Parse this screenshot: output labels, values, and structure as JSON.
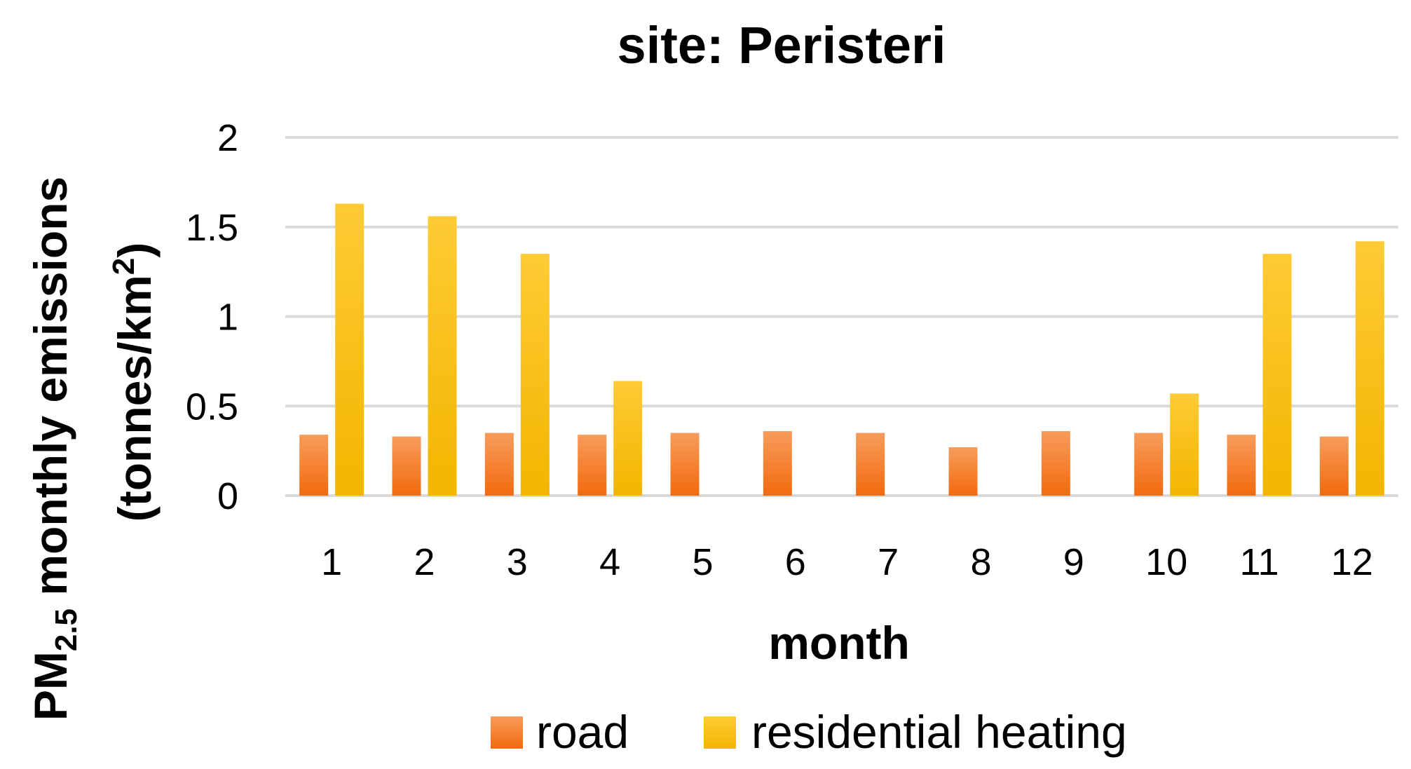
{
  "chart_data": {
    "type": "bar",
    "title": "site: Peristeri",
    "xlabel": "month",
    "ylabel": {
      "line1_prefix": "PM",
      "line1_subscript": "2.5",
      "line1_suffix": " monthly emissions",
      "line2_prefix": "(tonnes/km",
      "line2_superscript": "2",
      "line2_suffix": ")"
    },
    "categories": [
      "1",
      "2",
      "3",
      "4",
      "5",
      "6",
      "7",
      "8",
      "9",
      "10",
      "11",
      "12"
    ],
    "ylim": [
      0,
      2
    ],
    "yticks": [
      "0",
      "0.5",
      "1",
      "1.5",
      "2"
    ],
    "grid": true,
    "legend_position": "bottom",
    "series": [
      {
        "name": "road",
        "color": "#F4791F",
        "values": [
          0.34,
          0.33,
          0.35,
          0.34,
          0.35,
          0.36,
          0.35,
          0.27,
          0.36,
          0.35,
          0.34,
          0.33
        ]
      },
      {
        "name": "residential heating",
        "color": "#FFC000",
        "values": [
          1.63,
          1.56,
          1.35,
          0.64,
          0,
          0,
          0,
          0,
          0,
          0.57,
          1.35,
          1.42
        ]
      }
    ]
  }
}
